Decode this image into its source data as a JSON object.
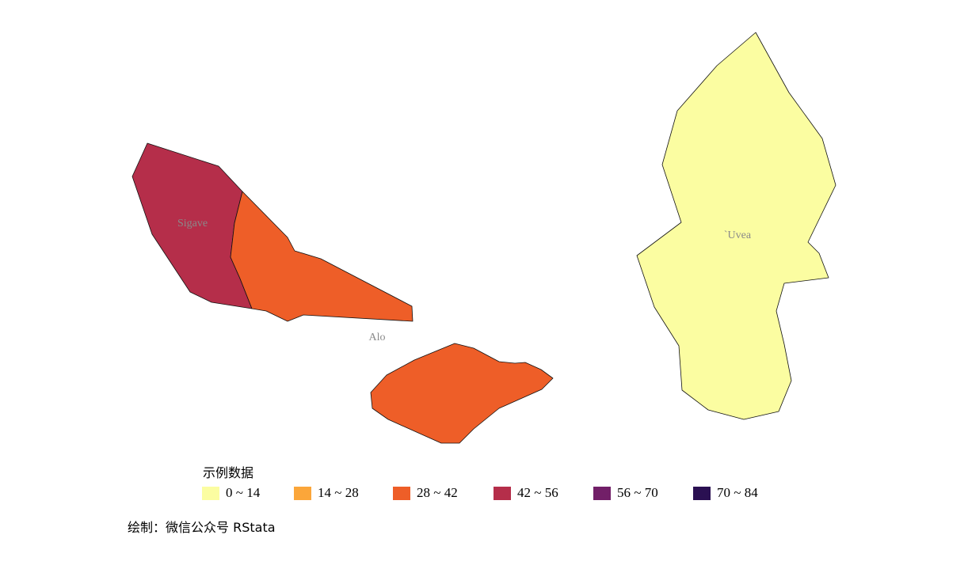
{
  "map": {
    "regions": [
      {
        "name": "Sigave",
        "label": "Sigave",
        "bin": "42 ~ 56",
        "color": "#B52E4A"
      },
      {
        "name": "Alo",
        "label": "Alo",
        "bin": "28 ~ 42",
        "color": "#EE5E28"
      },
      {
        "name": "Uvea",
        "label": "`Uvea",
        "bin": "0 ~ 14",
        "color": "#FBFDA1"
      }
    ]
  },
  "legend": {
    "title": "示例数据",
    "items": [
      {
        "label": "0 ~ 14",
        "color": "#FBFDA1"
      },
      {
        "label": "14 ~ 28",
        "color": "#FBA63A"
      },
      {
        "label": "28 ~ 42",
        "color": "#EE5E28"
      },
      {
        "label": "42 ~ 56",
        "color": "#B52E4A"
      },
      {
        "label": "56 ~ 70",
        "color": "#721F68"
      },
      {
        "label": "70 ~ 84",
        "color": "#2A1052"
      }
    ]
  },
  "caption": "绘制：微信公众号 RStata"
}
